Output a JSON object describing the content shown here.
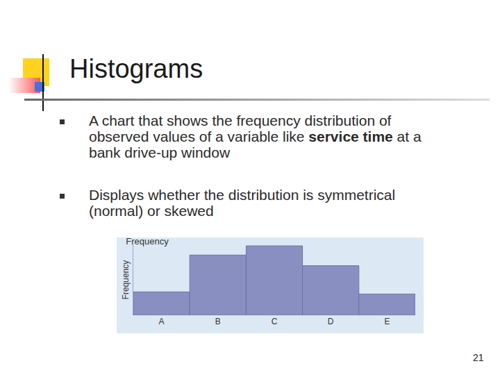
{
  "slide": {
    "title": "Histograms",
    "bullets": [
      [
        {
          "text": "A chart that shows the frequency distribution of observed values of a variable like "
        },
        {
          "text": "service time",
          "bold": true
        },
        {
          "text": " at a bank drive-up window"
        }
      ],
      [
        {
          "text": "Displays whether the distribution is symmetrical (normal) or skewed"
        }
      ]
    ],
    "page_number": "21"
  },
  "chart_data": {
    "type": "bar",
    "title": "Frequency",
    "y_label": "Frequency",
    "categories": [
      "A",
      "B",
      "C",
      "D",
      "E"
    ],
    "values": [
      33,
      85,
      98,
      70,
      30
    ],
    "color": "#8a8fc2",
    "ylim": [
      0,
      100
    ],
    "yticks": [],
    "grid": false,
    "tick_labels": "x"
  }
}
